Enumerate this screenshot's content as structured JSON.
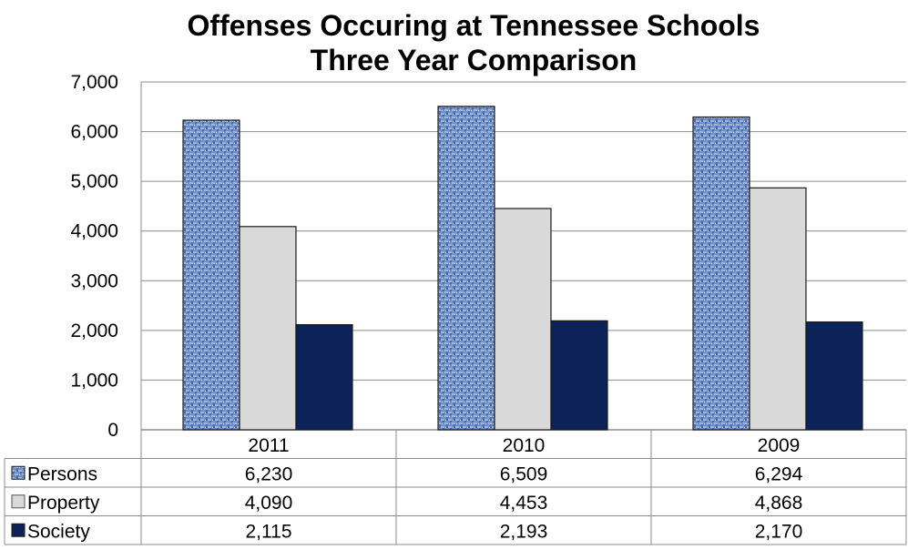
{
  "chart_data": {
    "type": "bar",
    "title": "Offenses Occuring at Tennessee Schools",
    "subtitle": "Three Year Comparison",
    "categories": [
      "2011",
      "2010",
      "2009"
    ],
    "series": [
      {
        "name": "Persons",
        "values": [
          6230,
          6509,
          6294
        ],
        "labels": [
          "6,230",
          "6,509",
          "6,294"
        ],
        "color": "#6f8fc9",
        "pattern": "textured"
      },
      {
        "name": "Property",
        "values": [
          4090,
          4453,
          4868
        ],
        "labels": [
          "4,090",
          "4,453",
          "4,868"
        ],
        "color": "#d9d9d9"
      },
      {
        "name": "Society",
        "values": [
          2115,
          2193,
          2170
        ],
        "labels": [
          "2,115",
          "2,193",
          "2,170"
        ],
        "color": "#0d2259"
      }
    ],
    "ylim": [
      0,
      7000
    ],
    "yticks": [
      0,
      1000,
      2000,
      3000,
      4000,
      5000,
      6000,
      7000
    ],
    "ytick_labels": [
      "0",
      "1,000",
      "2,000",
      "3,000",
      "4,000",
      "5,000",
      "6,000",
      "7,000"
    ],
    "grid": true,
    "legend": "data-table",
    "xlabel": "",
    "ylabel": ""
  }
}
